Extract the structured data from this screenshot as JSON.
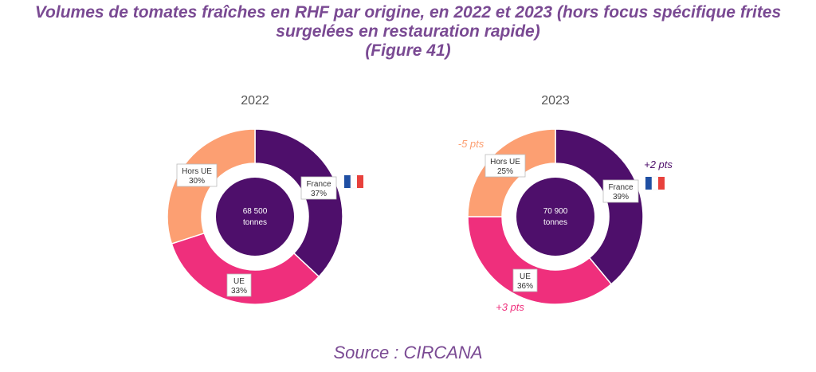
{
  "header": {
    "title_line1": "Volumes de tomates fraîches en RHF par origine, en 2022 et 2023 (hors focus spécifique frites",
    "title_line2": "surgelées en restauration rapide)",
    "title_line3": "(Figure 41)"
  },
  "footer": {
    "source": "Source : CIRCANA"
  },
  "colors": {
    "title": "#7a4a93",
    "france": "#4e0f6b",
    "ue": "#ef2f7c",
    "hors_ue": "#fc9f72",
    "center": "#4e0f6b"
  },
  "chart_data": [
    {
      "type": "pie",
      "title": "2022",
      "center_value": "68 500",
      "center_unit": "tonnes",
      "slices": [
        {
          "name": "France",
          "value": 37,
          "label": "37%",
          "color": "#4e0f6b"
        },
        {
          "name": "UE",
          "value": 33,
          "label": "33%",
          "color": "#ef2f7c"
        },
        {
          "name": "Hors UE",
          "value": 30,
          "label": "30%",
          "color": "#fc9f72"
        }
      ],
      "flag": "france-flag"
    },
    {
      "type": "pie",
      "title": "2023",
      "center_value": "70 900",
      "center_unit": "tonnes",
      "slices": [
        {
          "name": "France",
          "value": 39,
          "label": "39%",
          "color": "#4e0f6b",
          "change": "+2 pts",
          "change_color": "#4e0f6b"
        },
        {
          "name": "UE",
          "value": 36,
          "label": "36%",
          "color": "#ef2f7c",
          "change": "+3 pts",
          "change_color": "#ef2f7c"
        },
        {
          "name": "Hors UE",
          "value": 25,
          "label": "25%",
          "color": "#fc9f72",
          "change": "-5 pts",
          "change_color": "#fc9f72"
        }
      ],
      "flag": "france-flag"
    }
  ]
}
